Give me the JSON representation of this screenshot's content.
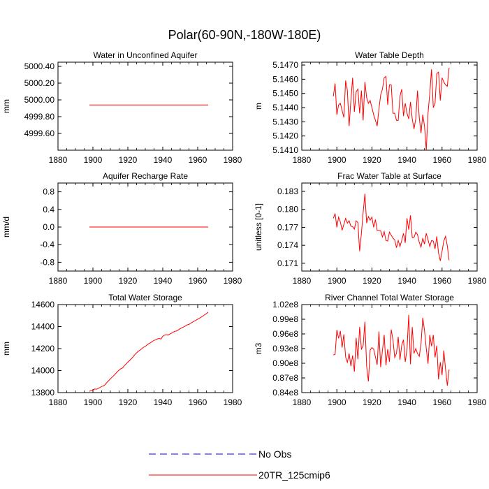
{
  "figure_title": "Polar(60-90N,-180W-180E)",
  "colors": {
    "model": "#ff0000",
    "obs": "#0000ff",
    "axis": "#000000"
  },
  "legend": {
    "obs_label": "No Obs",
    "model_label": "20TR_125cmip6"
  },
  "chart_data": [
    {
      "type": "line",
      "title": "Water in Unconfined Aquifer",
      "ylabel": "mm",
      "xlabel": "",
      "xlim": [
        1880,
        1980
      ],
      "ylim": [
        4999.4,
        5000.45
      ],
      "xticks": [
        1880,
        1900,
        1920,
        1940,
        1960,
        1980
      ],
      "yticks": [
        4999.6,
        4999.8,
        5000.0,
        5000.2,
        5000.4
      ],
      "ytick_labels": [
        "4999.60",
        "4999.80",
        "5000.00",
        "5000.20",
        "5000.40"
      ],
      "series": [
        {
          "name": "20TR_125cmip6",
          "x_start": 1898,
          "x_step": 1,
          "values": [
            4999.94,
            4999.94,
            4999.94,
            4999.94,
            4999.94,
            4999.94,
            4999.94,
            4999.94,
            4999.94,
            4999.94,
            4999.94,
            4999.94,
            4999.94,
            4999.94,
            4999.94,
            4999.94,
            4999.94,
            4999.94,
            4999.94,
            4999.94,
            4999.94,
            4999.94,
            4999.94,
            4999.94,
            4999.94,
            4999.94,
            4999.94,
            4999.94,
            4999.94,
            4999.94,
            4999.94,
            4999.94,
            4999.94,
            4999.94,
            4999.94,
            4999.94,
            4999.94,
            4999.94,
            4999.94,
            4999.94,
            4999.94,
            4999.94,
            4999.94,
            4999.94,
            4999.94,
            4999.94,
            4999.94,
            4999.94,
            4999.94,
            4999.94,
            4999.94,
            4999.94,
            4999.94,
            4999.94,
            4999.94,
            4999.94,
            4999.94,
            4999.94,
            4999.94,
            4999.94,
            4999.94,
            4999.94,
            4999.94,
            4999.94,
            4999.94,
            4999.94,
            4999.94,
            4999.94,
            4999.94
          ]
        }
      ]
    },
    {
      "type": "line",
      "title": "Water Table Depth",
      "ylabel": "m",
      "xlabel": "",
      "xlim": [
        1880,
        1980
      ],
      "ylim": [
        5.141,
        5.1472
      ],
      "xticks": [
        1880,
        1900,
        1920,
        1940,
        1960,
        1980
      ],
      "yticks": [
        5.141,
        5.142,
        5.143,
        5.144,
        5.145,
        5.146,
        5.147
      ],
      "ytick_labels": [
        "5.1410",
        "5.1420",
        "5.1430",
        "5.1440",
        "5.1450",
        "5.1460",
        "5.1470"
      ],
      "series": [
        {
          "name": "20TR_125cmip6",
          "x_start": 1898,
          "x_step": 1,
          "values": [
            5.1448,
            5.1457,
            5.1435,
            5.1442,
            5.1443,
            5.1438,
            5.1433,
            5.1459,
            5.1452,
            5.1427,
            5.1445,
            5.1461,
            5.1437,
            5.1451,
            5.1453,
            5.1436,
            5.1452,
            5.1431,
            5.1458,
            5.1447,
            5.1443,
            5.1445,
            5.144,
            5.1435,
            5.1431,
            5.1427,
            5.1439,
            5.1449,
            5.1453,
            5.1461,
            5.1462,
            5.1442,
            5.1456,
            5.1456,
            5.1436,
            5.1436,
            5.1431,
            5.1431,
            5.1448,
            5.1453,
            5.1434,
            5.1443,
            5.1436,
            5.1432,
            5.1444,
            5.1432,
            5.1425,
            5.1432,
            5.1452,
            5.1433,
            5.1422,
            5.1435,
            5.1427,
            5.141,
            5.1436,
            5.145,
            5.1467,
            5.144,
            5.1443,
            5.1464,
            5.1465,
            5.1445,
            5.1461,
            5.1458,
            5.1456,
            5.1455,
            5.1468
          ]
        }
      ]
    },
    {
      "type": "line",
      "title": "Aquifer Recharge Rate",
      "ylabel": "mm/d",
      "xlabel": "",
      "xlim": [
        1880,
        1980
      ],
      "ylim": [
        -1.0,
        1.0
      ],
      "xticks": [
        1880,
        1900,
        1920,
        1940,
        1960,
        1980
      ],
      "yticks": [
        -0.8,
        -0.4,
        0.0,
        0.4,
        0.8
      ],
      "ytick_labels": [
        "-0.8",
        "-0.4",
        "0.0",
        "0.4",
        "0.8"
      ],
      "series": [
        {
          "name": "20TR_125cmip6",
          "x_start": 1898,
          "x_step": 1,
          "values": [
            0,
            0,
            0,
            0,
            0,
            0,
            0,
            0,
            0,
            0,
            0,
            0,
            0,
            0,
            0,
            0,
            0,
            0,
            0,
            0,
            0,
            0,
            0,
            0,
            0,
            0,
            0,
            0,
            0,
            0,
            0,
            0,
            0,
            0,
            0,
            0,
            0,
            0,
            0,
            0,
            0,
            0,
            0,
            0,
            0,
            0,
            0,
            0,
            0,
            0,
            0,
            0,
            0,
            0,
            0,
            0,
            0,
            0,
            0,
            0,
            0,
            0,
            0,
            0,
            0,
            0,
            0,
            0,
            0
          ]
        }
      ]
    },
    {
      "type": "line",
      "title": "Frac Water Table at Surface",
      "ylabel": "unitless [0-1]",
      "xlabel": "",
      "xlim": [
        1880,
        1980
      ],
      "ylim": [
        0.1697,
        0.1844
      ],
      "xticks": [
        1880,
        1900,
        1920,
        1940,
        1960,
        1980
      ],
      "yticks": [
        0.171,
        0.174,
        0.177,
        0.18,
        0.183
      ],
      "ytick_labels": [
        "0.171",
        "0.174",
        "0.177",
        "0.180",
        "0.183"
      ],
      "series": [
        {
          "name": "20TR_125cmip6",
          "x_start": 1898,
          "x_step": 1,
          "values": [
            0.1785,
            0.1793,
            0.177,
            0.1787,
            0.1779,
            0.1765,
            0.1775,
            0.1785,
            0.1777,
            0.1781,
            0.1772,
            0.1771,
            0.1767,
            0.1781,
            0.1778,
            0.173,
            0.176,
            0.1795,
            0.1826,
            0.1777,
            0.1788,
            0.1782,
            0.1787,
            0.177,
            0.1783,
            0.1765,
            0.1765,
            0.1764,
            0.1754,
            0.1763,
            0.1748,
            0.1747,
            0.1762,
            0.1757,
            0.1752,
            0.1749,
            0.1736,
            0.1748,
            0.1738,
            0.1748,
            0.176,
            0.1744,
            0.1785,
            0.1766,
            0.179,
            0.1753,
            0.1753,
            0.1762,
            0.1758,
            0.1745,
            0.1737,
            0.1752,
            0.1742,
            0.176,
            0.1749,
            0.1738,
            0.1748,
            0.1747,
            0.1734,
            0.1755,
            0.1727,
            0.1714,
            0.173,
            0.1747,
            0.1755,
            0.1739,
            0.1715
          ]
        }
      ]
    },
    {
      "type": "line",
      "title": "Total Water Storage",
      "ylabel": "mm",
      "xlabel": "",
      "xlim": [
        1880,
        1980
      ],
      "ylim": [
        13800,
        14600
      ],
      "xticks": [
        1880,
        1900,
        1920,
        1940,
        1960,
        1980
      ],
      "yticks": [
        13800,
        14000,
        14200,
        14400,
        14600
      ],
      "ytick_labels": [
        "13800",
        "14000",
        "14200",
        "14400",
        "14600"
      ],
      "series": [
        {
          "name": "20TR_125cmip6",
          "x_start": 1898,
          "x_step": 1,
          "values": [
            13812,
            13817,
            13822,
            13833,
            13830,
            13838,
            13846,
            13856,
            13860,
            13872,
            13892,
            13908,
            13925,
            13940,
            13956,
            13972,
            13990,
            14004,
            14017,
            14024,
            14045,
            14060,
            14076,
            14092,
            14108,
            14125,
            14145,
            14161,
            14176,
            14186,
            14199,
            14212,
            14220,
            14233,
            14245,
            14253,
            14265,
            14275,
            14279,
            14288,
            14292,
            14287,
            14312,
            14322,
            14326,
            14322,
            14332,
            14340,
            14350,
            14358,
            14360,
            14371,
            14381,
            14389,
            14398,
            14405,
            14416,
            14420,
            14431,
            14440,
            14450,
            14457,
            14468,
            14476,
            14486,
            14496,
            14507,
            14518,
            14532
          ]
        }
      ]
    },
    {
      "type": "line",
      "title": "River Channel Total Water Storage",
      "ylabel": "m3",
      "xlabel": "",
      "xlim": [
        1880,
        1980
      ],
      "ylim": [
        84000000,
        102000000
      ],
      "xticks": [
        1880,
        1900,
        1920,
        1940,
        1960,
        1980
      ],
      "yticks": [
        84000000,
        87000000,
        90000000,
        93000000,
        96000000,
        99000000,
        102000000
      ],
      "ytick_labels": [
        "0.84e8",
        "0.87e8",
        "0.90e8",
        "0.93e8",
        "0.96e8",
        "0.99e8",
        "1.02e8"
      ],
      "series": [
        {
          "name": "20TR_125cmip6",
          "x_start": 1898,
          "x_step": 1,
          "values": [
            91700000,
            91800000,
            96800000,
            95100000,
            96600000,
            93200000,
            95900000,
            91300000,
            90200000,
            92000000,
            89400000,
            91600000,
            88300000,
            95200000,
            90800000,
            97400000,
            92900000,
            93600000,
            98500000,
            89400000,
            86300000,
            92700000,
            93200000,
            92900000,
            91300000,
            89700000,
            96500000,
            89200000,
            92600000,
            95800000,
            89600000,
            92900000,
            90300000,
            96900000,
            94800000,
            91200000,
            92000000,
            95400000,
            90700000,
            93700000,
            94800000,
            90300000,
            92800000,
            99900000,
            89800000,
            97400000,
            92000000,
            93000000,
            92000000,
            91400000,
            94000000,
            99300000,
            96700000,
            93000000,
            89900000,
            95800000,
            93500000,
            95800000,
            91200000,
            93600000,
            86700000,
            90200000,
            87600000,
            92600000,
            88800000,
            85400000,
            88700000
          ]
        }
      ]
    }
  ]
}
